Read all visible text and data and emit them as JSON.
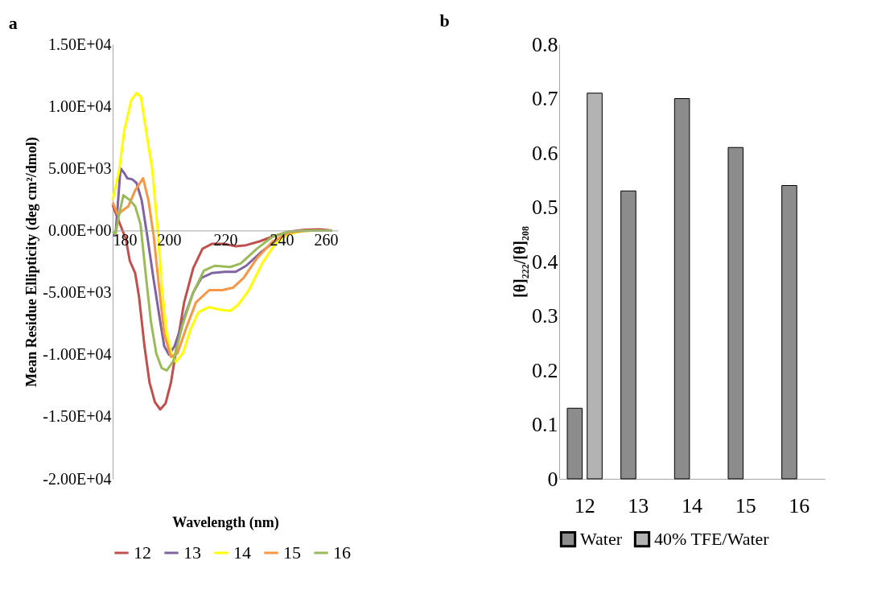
{
  "chart_data": [
    {
      "type": "line",
      "title": "a",
      "xlabel": "Wavelength (nm)",
      "ylabel": "Mean Residue Ellipticity (deg cm²/dmol)",
      "xlim": [
        180,
        260
      ],
      "xticks": [
        180,
        200,
        220,
        240,
        260
      ],
      "ylim": [
        -20000,
        15000
      ],
      "yticks": [
        {
          "value": -20000,
          "label": "-2.00E+04"
        },
        {
          "value": -15000,
          "label": "-1.50E+04"
        },
        {
          "value": -10000,
          "label": "-1.00E+04"
        },
        {
          "value": -5000,
          "label": "-5.00E+03"
        },
        {
          "value": 0,
          "label": "0.00E+00"
        },
        {
          "value": 5000,
          "label": "5.00E+03"
        },
        {
          "value": 10000,
          "label": "1.00E+04"
        },
        {
          "value": 15000,
          "label": "1.50E+04"
        }
      ],
      "grid": false,
      "legend": "bottom",
      "marker": "none",
      "line_style": "solid",
      "series": [
        {
          "name": "12",
          "color": "#c0504d",
          "x": [
            180,
            182.3,
            184.7,
            186.1,
            188,
            189.4,
            191.3,
            193.1,
            195,
            196.9,
            198.8,
            200.7,
            202.5,
            205.4,
            208.6,
            211.9,
            215.2,
            219.9,
            223.7,
            227.4,
            232.1,
            236.8,
            242.4,
            248.1,
            253.7,
            258
          ],
          "values": [
            2060,
            690,
            -690,
            -2450,
            -3430,
            -5390,
            -9310,
            -12250,
            -13820,
            -14410,
            -13920,
            -12250,
            -9700,
            -5780,
            -3040,
            -1470,
            -1080,
            -1080,
            -1270,
            -1180,
            -880,
            -490,
            -100,
            60,
            100,
            0
          ]
        },
        {
          "name": "13",
          "color": "#8064a2",
          "x": [
            180,
            181,
            182.8,
            184.2,
            185.2,
            187,
            188.5,
            190.3,
            192.2,
            194.6,
            196.9,
            198.3,
            200,
            202,
            204.9,
            208.6,
            211.5,
            215.2,
            219.9,
            223.7,
            227.4,
            233.1,
            238.7,
            244.3,
            249.9,
            258
          ],
          "values": [
            -390,
            -390,
            5000,
            4600,
            4210,
            4120,
            3820,
            2450,
            -290,
            -4020,
            -7350,
            -9310,
            -10000,
            -9310,
            -7350,
            -5000,
            -3820,
            -3430,
            -3330,
            -3330,
            -2840,
            -1670,
            -690,
            -140,
            0,
            0
          ]
        },
        {
          "name": "14",
          "color": "#ffff00",
          "x": [
            180,
            182.3,
            184.2,
            186.6,
            188.5,
            190,
            191.7,
            194.1,
            196,
            197.4,
            199.2,
            201.1,
            202.5,
            204.9,
            207.7,
            210.5,
            214.3,
            218,
            221.8,
            224.6,
            228.4,
            233.1,
            237.7,
            242.4,
            247.1,
            251.8,
            258
          ],
          "values": [
            2450,
            4800,
            8130,
            10490,
            11070,
            10780,
            8330,
            4800,
            100,
            -4400,
            -8330,
            -10100,
            -10580,
            -9900,
            -7940,
            -6570,
            -6170,
            -6370,
            -6470,
            -5980,
            -4800,
            -2650,
            -1080,
            -300,
            -60,
            0,
            0
          ]
        },
        {
          "name": "15",
          "color": "#f79646",
          "x": [
            180,
            181.9,
            183.3,
            185.6,
            188,
            190.8,
            192.7,
            194.6,
            196.4,
            198.3,
            200.7,
            203,
            206.3,
            209.6,
            214.3,
            219,
            222.7,
            226.5,
            231.2,
            236.8,
            242.4,
            248.1,
            258
          ],
          "values": [
            2250,
            1270,
            1570,
            1960,
            3230,
            4210,
            2450,
            -490,
            -4410,
            -8330,
            -10190,
            -9900,
            -7740,
            -5780,
            -4800,
            -4800,
            -4610,
            -3820,
            -2250,
            -880,
            -200,
            0,
            0
          ]
        },
        {
          "name": "16",
          "color": "#9bbb59",
          "x": [
            180,
            181,
            182.3,
            183.8,
            186.1,
            188,
            189.9,
            191.7,
            193.6,
            195.5,
            197.4,
            199.2,
            201.6,
            204.9,
            208.6,
            212.4,
            216.2,
            221.8,
            225.5,
            231.2,
            236.8,
            242.4,
            248.1,
            258
          ],
          "values": [
            -100,
            -290,
            1270,
            2840,
            2450,
            1960,
            490,
            -3430,
            -7350,
            -9900,
            -11070,
            -11270,
            -10490,
            -7550,
            -5000,
            -3230,
            -2840,
            -2940,
            -2650,
            -1470,
            -490,
            -100,
            0,
            0
          ]
        }
      ]
    },
    {
      "type": "bar",
      "title": "b",
      "ylabel": "[θ]₂₂₂/[θ]₂₀₈",
      "categories": [
        "12",
        "13",
        "14",
        "15",
        "16"
      ],
      "ylim": [
        0,
        0.8
      ],
      "yticks": [
        0,
        0.1,
        0.2,
        0.3,
        0.4,
        0.5,
        0.6,
        0.7,
        0.8
      ],
      "grid": false,
      "legend": "bottom",
      "series": [
        {
          "name": "Water",
          "color": "#8c8c8c",
          "values": [
            0.13,
            0.53,
            0.7,
            0.61,
            0.54
          ]
        },
        {
          "name": "40% TFE/Water",
          "color": "#b3b3b3",
          "values": [
            0.71,
            null,
            null,
            null,
            null
          ]
        }
      ]
    }
  ]
}
